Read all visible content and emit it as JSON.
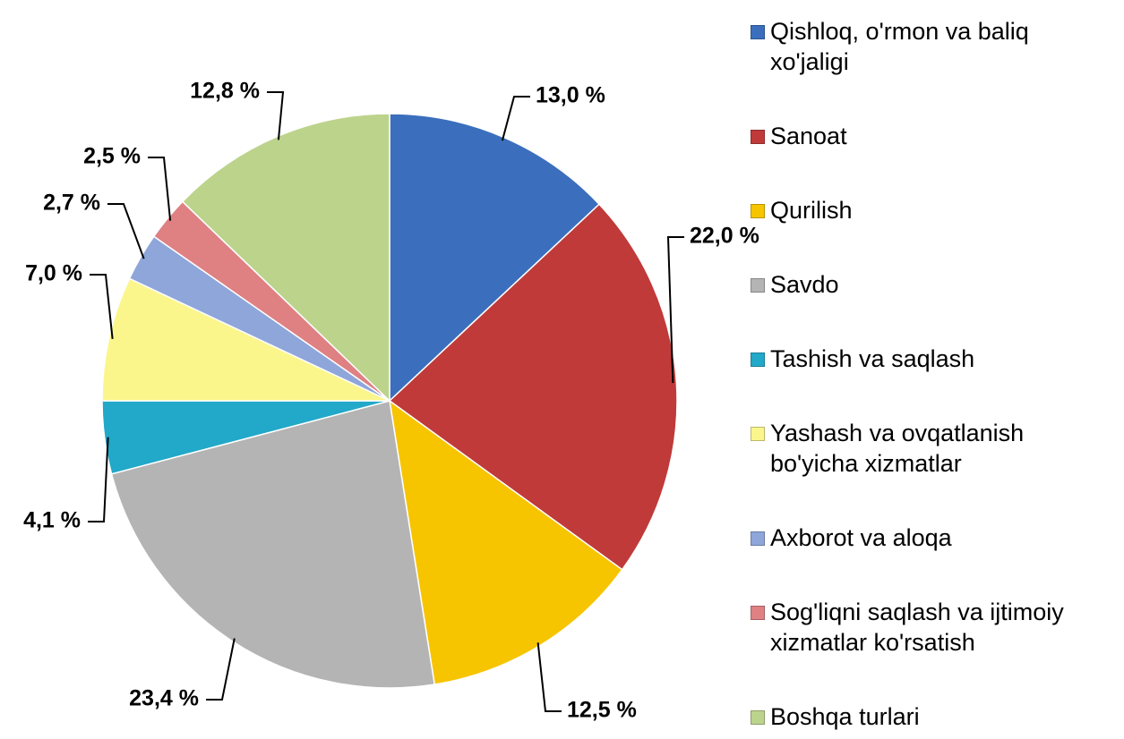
{
  "chart_data": {
    "type": "pie",
    "categories": [
      "Qishloq, o'rmon va baliq xo'jaligi",
      "Sanoat",
      "Qurilish",
      "Savdo",
      "Tashish va saqlash",
      "Yashash va ovqatlanish bo'yicha xizmatlar",
      "Axborot va aloqa",
      "Sog'liqni saqlash va ijtimoiy xizmatlar ko'rsatish",
      "Boshqa turlari"
    ],
    "values": [
      13.0,
      22.0,
      12.5,
      23.4,
      4.1,
      7.0,
      2.7,
      2.5,
      12.8
    ],
    "value_labels": [
      "13,0 %",
      "22,0 %",
      "12,5 %",
      "23,4 %",
      "4,1 %",
      "7,0 %",
      "2,7 %",
      "2,5 %",
      "12,8 %"
    ],
    "colors": [
      "#3b6fbd",
      "#c03a3a",
      "#f7c400",
      "#b4b4b4",
      "#22a8c8",
      "#fbf68c",
      "#8ea6da",
      "#df8083",
      "#bcd38c"
    ],
    "legend": "right"
  }
}
